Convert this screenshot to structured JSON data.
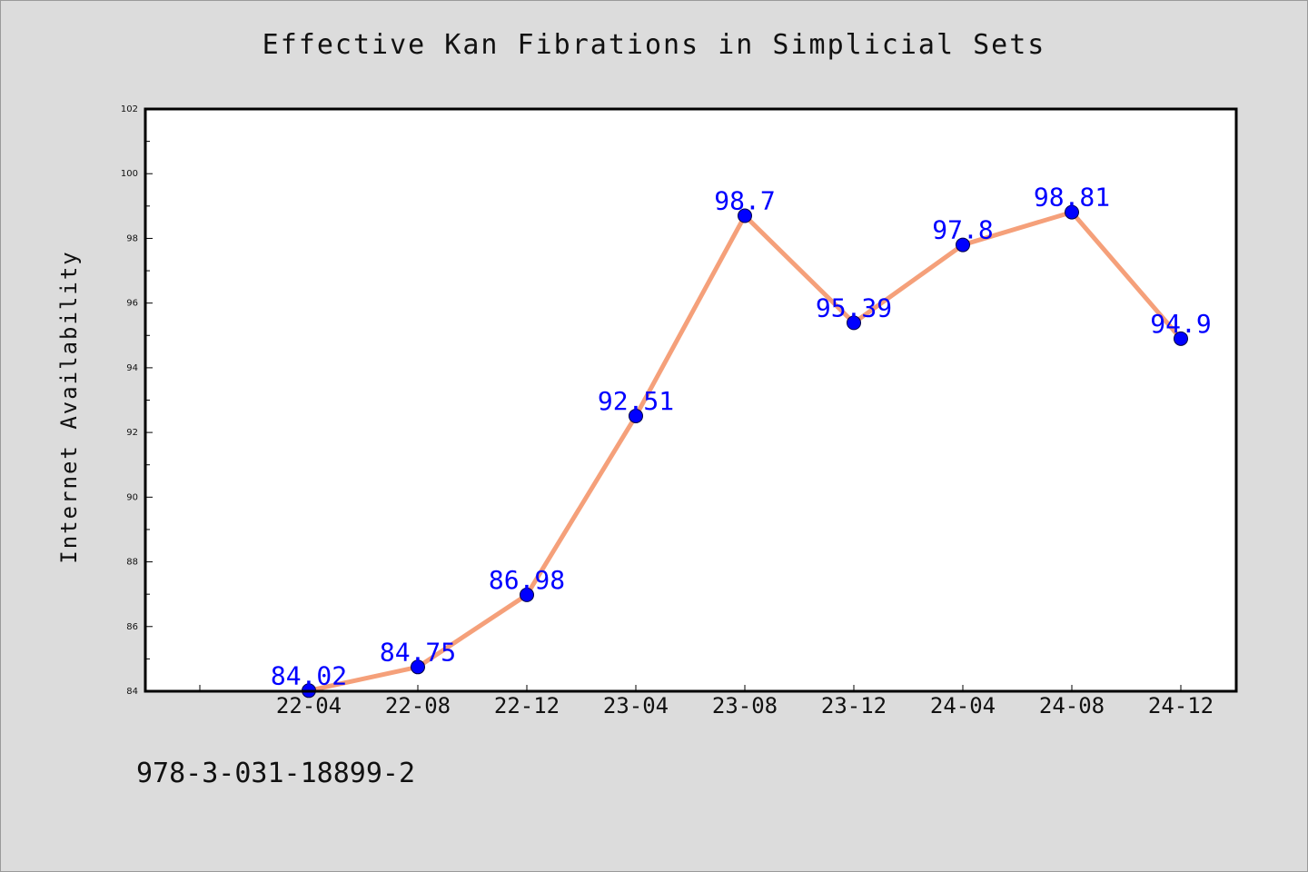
{
  "chart_data": {
    "type": "line",
    "title": "Effective Kan Fibrations in Simplicial Sets",
    "xlabel": "",
    "ylabel": "Internet Availability",
    "categories": [
      "22-04",
      "22-08",
      "22-12",
      "23-04",
      "23-08",
      "23-12",
      "24-04",
      "24-08",
      "24-12"
    ],
    "series": [
      {
        "values": [
          84.02,
          84.75,
          86.98,
          92.51,
          98.7,
          95.39,
          97.8,
          98.81,
          94.9
        ],
        "data_labels": [
          "84.02",
          "84.75",
          "86.98",
          "92.51",
          "98.7",
          "95.39",
          "97.8",
          "98.81",
          "94.9"
        ],
        "line_color": "#f5a07a",
        "marker_color": "#0000ff"
      }
    ],
    "y_ticks": [
      "84",
      "86",
      "88",
      "90",
      "92",
      "94",
      "96",
      "98",
      "100",
      "102"
    ],
    "ylim": [
      84,
      102
    ],
    "grid": false,
    "legend": "none"
  },
  "footer_text": "978-3-031-18899-2",
  "colors": {
    "background": "#dcdcdc",
    "plot_area": "#ffffff",
    "line": "#f5a07a",
    "marker": "#0000ff",
    "data_label": "#0000ff"
  }
}
